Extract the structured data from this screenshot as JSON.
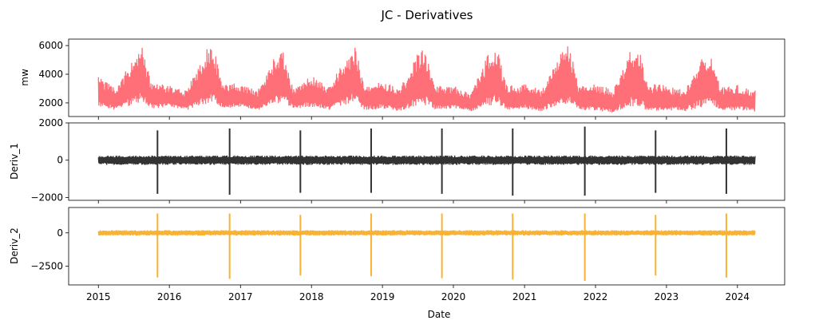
{
  "figure": {
    "title": "JC - Derivatives",
    "xlabel": "Date"
  },
  "chart_data": [
    {
      "type": "line",
      "ylabel": "mw",
      "color": "#ff6f77",
      "x_range": [
        "2014-08-01",
        "2024-08-31"
      ],
      "ylim": [
        1050,
        6450
      ],
      "yticks": [
        2000,
        4000,
        6000
      ],
      "x_ticks": [
        "2015",
        "2016",
        "2017",
        "2018",
        "2019",
        "2020",
        "2021",
        "2022",
        "2023",
        "2024"
      ],
      "series": [
        {
          "x": [
            "2015-01-01",
            "2015-04-01",
            "2015-07-01",
            "2015-08-15",
            "2015-10-01",
            "2016-01-01",
            "2016-04-01",
            "2016-07-01",
            "2016-08-10",
            "2016-10-01",
            "2017-01-01",
            "2017-04-01",
            "2017-07-01",
            "2017-08-10",
            "2017-10-01",
            "2018-01-01",
            "2018-04-01",
            "2018-07-01",
            "2018-08-15",
            "2018-10-01",
            "2019-01-01",
            "2019-04-01",
            "2019-07-01",
            "2019-08-01",
            "2019-10-01",
            "2020-01-01",
            "2020-04-01",
            "2020-07-01",
            "2020-08-10",
            "2020-10-01",
            "2021-01-01",
            "2021-04-01",
            "2021-07-01",
            "2021-08-20",
            "2021-10-01",
            "2022-01-01",
            "2022-04-01",
            "2022-07-01",
            "2022-08-05",
            "2022-10-01",
            "2023-01-01",
            "2023-04-01",
            "2023-07-01",
            "2023-09-01",
            "2023-10-01",
            "2024-01-01",
            "2024-04-01"
          ],
          "upper": [
            3800,
            3200,
            5200,
            5900,
            3400,
            3200,
            2900,
            5600,
            6200,
            3300,
            3400,
            2900,
            5400,
            5700,
            3000,
            4000,
            3200,
            5300,
            6000,
            3100,
            3500,
            3000,
            5500,
            6100,
            3300,
            3200,
            2700,
            5500,
            6000,
            3200,
            3300,
            2900,
            5600,
            6200,
            3400,
            3500,
            2900,
            5700,
            6100,
            3300,
            3300,
            2900,
            5200,
            5400,
            3100,
            3300,
            2900
          ],
          "lower": [
            1700,
            1500,
            1900,
            2100,
            1600,
            1700,
            1500,
            1900,
            2000,
            1600,
            1700,
            1500,
            1900,
            2000,
            1600,
            1700,
            1500,
            1900,
            2000,
            1500,
            1600,
            1400,
            1800,
            1900,
            1500,
            1600,
            1400,
            1800,
            1900,
            1500,
            1600,
            1400,
            1800,
            1900,
            1500,
            1400,
            1300,
            1700,
            1800,
            1400,
            1500,
            1400,
            1700,
            1800,
            1400,
            1500,
            1400
          ]
        }
      ]
    },
    {
      "type": "line",
      "ylabel": "Deriv_1",
      "color": "#333333",
      "x_range": [
        "2014-08-01",
        "2024-08-31"
      ],
      "ylim": [
        -2150,
        2000
      ],
      "yticks": [
        -2000,
        0,
        2000
      ],
      "x_ticks": [
        "2015",
        "2016",
        "2017",
        "2018",
        "2019",
        "2020",
        "2021",
        "2022",
        "2023",
        "2024"
      ],
      "band_halfwidth": 250,
      "spikes": [
        {
          "x": "2015-11-01",
          "high": 1600,
          "low": -1800
        },
        {
          "x": "2016-11-06",
          "high": 1700,
          "low": -1850
        },
        {
          "x": "2017-11-05",
          "high": 1600,
          "low": -1750
        },
        {
          "x": "2018-11-04",
          "high": 1700,
          "low": -1750
        },
        {
          "x": "2019-11-03",
          "high": 1700,
          "low": -1800
        },
        {
          "x": "2020-11-01",
          "high": 1700,
          "low": -1900
        },
        {
          "x": "2021-11-07",
          "high": 1800,
          "low": -1900
        },
        {
          "x": "2022-11-06",
          "high": 1600,
          "low": -1750
        },
        {
          "x": "2023-11-05",
          "high": 1700,
          "low": -1800
        }
      ]
    },
    {
      "type": "line",
      "ylabel": "Deriv_2",
      "color": "#f9b233",
      "x_range": [
        "2014-08-01",
        "2024-08-31"
      ],
      "ylim": [
        -3900,
        1900
      ],
      "yticks": [
        -2500,
        0
      ],
      "x_ticks": [
        "2015",
        "2016",
        "2017",
        "2018",
        "2019",
        "2020",
        "2021",
        "2022",
        "2023",
        "2024"
      ],
      "band_halfwidth": 200,
      "spikes": [
        {
          "x": "2015-11-01",
          "high": 1450,
          "low": -3350
        },
        {
          "x": "2016-11-06",
          "high": 1450,
          "low": -3450
        },
        {
          "x": "2017-11-05",
          "high": 1350,
          "low": -3200
        },
        {
          "x": "2018-11-04",
          "high": 1450,
          "low": -3250
        },
        {
          "x": "2019-11-03",
          "high": 1450,
          "low": -3400
        },
        {
          "x": "2020-11-01",
          "high": 1450,
          "low": -3500
        },
        {
          "x": "2021-11-07",
          "high": 1450,
          "low": -3600
        },
        {
          "x": "2022-11-06",
          "high": 1350,
          "low": -3200
        },
        {
          "x": "2023-11-05",
          "high": 1450,
          "low": -3350
        }
      ]
    }
  ]
}
